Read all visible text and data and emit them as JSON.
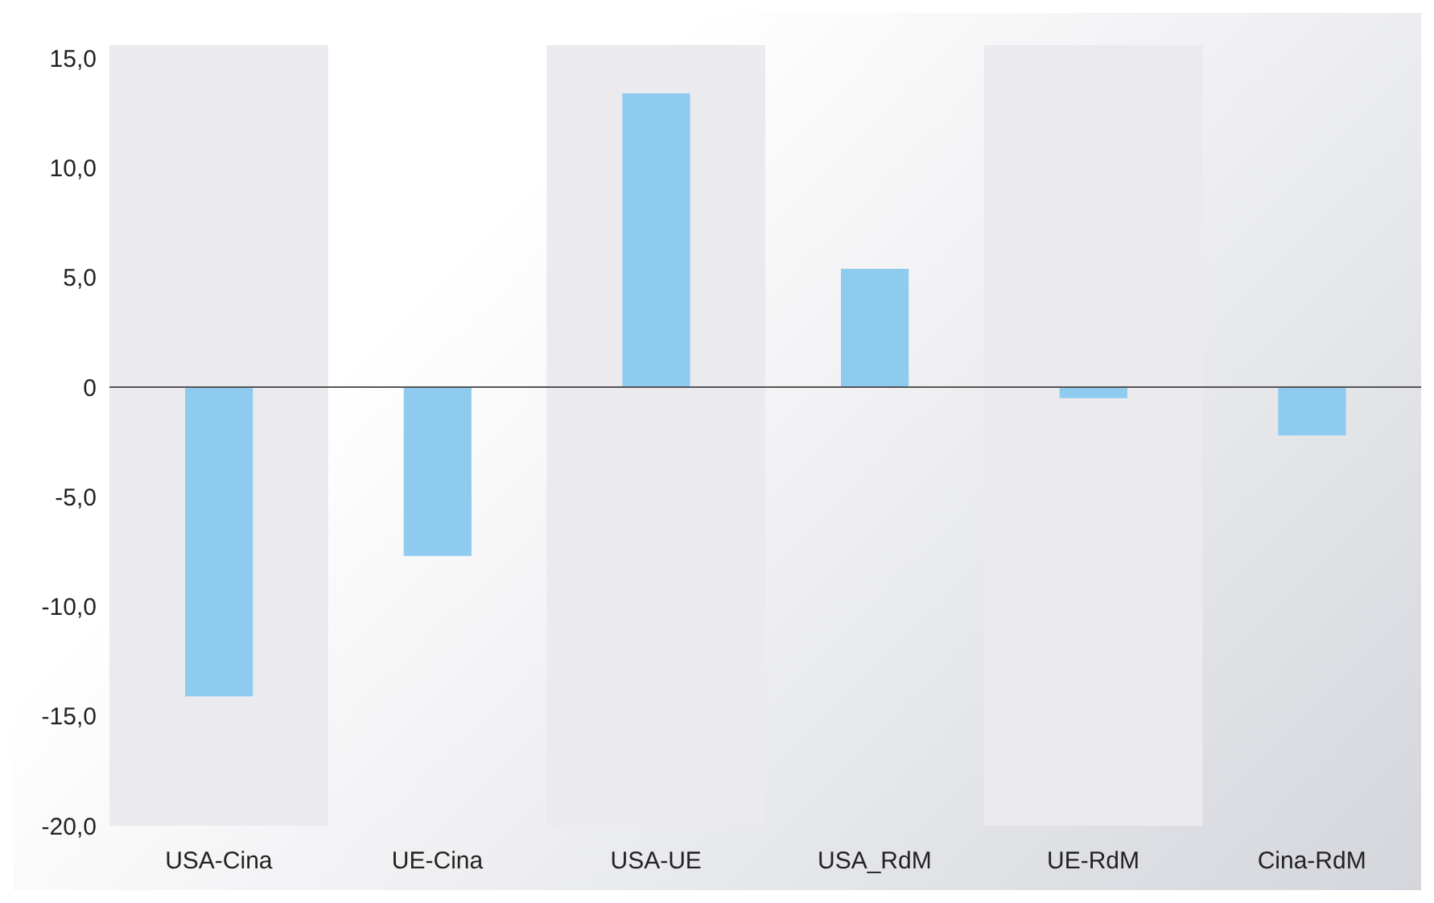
{
  "chart_data": {
    "type": "bar",
    "categories": [
      "USA-Cina",
      "UE-Cina",
      "USA-UE",
      "USA_RdM",
      "UE-RdM",
      "Cina-RdM"
    ],
    "values": [
      -14.1,
      -7.7,
      13.4,
      5.4,
      -0.5,
      -2.2
    ],
    "color": "#8ecbef",
    "ylim": [
      -20,
      15.6
    ],
    "yticks": [
      {
        "value": -20,
        "label": "-20,0"
      },
      {
        "value": -15,
        "label": "-15,0"
      },
      {
        "value": -10,
        "label": "-10,0"
      },
      {
        "value": -5,
        "label": "-5,0"
      },
      0,
      {
        "value": 5,
        "label": "5,0"
      },
      {
        "value": 10,
        "label": "10,0"
      },
      {
        "value": 15,
        "label": "15,0"
      }
    ],
    "grid": false,
    "legend": false,
    "ref_lines": [
      {
        "axis": "y",
        "value": 0,
        "color": "#555555"
      }
    ],
    "bands": [
      {
        "axis": "x",
        "from": "USA-Cina",
        "to": "USA-Cina",
        "color": "#ebebef"
      },
      {
        "axis": "x",
        "from": "USA-UE",
        "to": "USA-UE",
        "color": "#ebebef"
      },
      {
        "axis": "x",
        "from": "UE-RdM",
        "to": "UE-RdM",
        "color": "#ebebef"
      }
    ]
  }
}
